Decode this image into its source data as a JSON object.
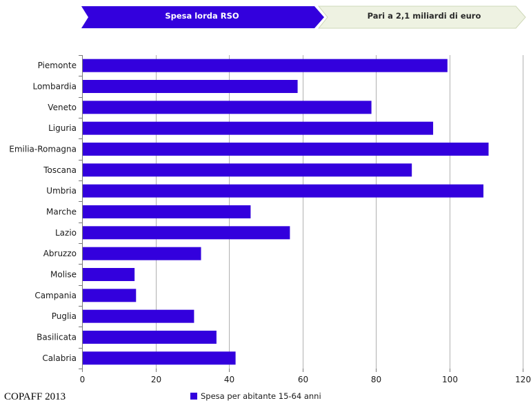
{
  "header": {
    "step1_label": "Spesa lorda RSO",
    "step2_label": "Pari a 2,1 miliardi di euro"
  },
  "colors": {
    "bar": "#3300dd",
    "step1_fill": "#3300dd",
    "step2_fill": "#eef2e2",
    "grid": "#b0b0b0",
    "axis": "#777777"
  },
  "chart_data": {
    "type": "bar",
    "orientation": "horizontal",
    "categories": [
      "Piemonte",
      "Lombardia",
      "Veneto",
      "Liguria",
      "Emilia-Romagna",
      "Toscana",
      "Umbria",
      "Marche",
      "Lazio",
      "Abruzzo",
      "Molise",
      "Campania",
      "Puglia",
      "Basilicata",
      "Calabria"
    ],
    "series": [
      {
        "name": "Spesa per abitante 15-64 anni",
        "values": [
          99.5,
          58.7,
          78.8,
          95.6,
          110.7,
          89.8,
          109.3,
          45.9,
          56.6,
          32.4,
          14.3,
          14.7,
          30.5,
          36.6,
          41.8
        ]
      }
    ],
    "xlim": [
      0,
      120
    ],
    "xticks": [
      "0",
      "20",
      "40",
      "60",
      "80",
      "100",
      "120"
    ],
    "grid": "vertical",
    "legend_position": "bottom"
  },
  "source": "COPAFF 2013"
}
